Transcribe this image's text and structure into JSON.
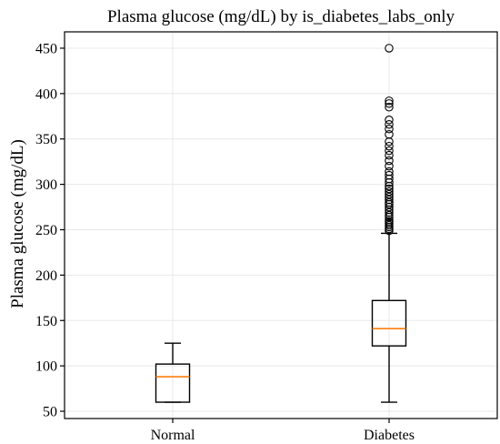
{
  "chart_data": {
    "type": "box",
    "title": "Plasma glucose (mg/dL) by is_diabetes_labs_only",
    "xlabel": "",
    "ylabel": "Plasma glucose (mg/dL)",
    "categories": [
      "Normal",
      "Diabetes"
    ],
    "ylim": [
      42,
      468
    ],
    "yticks": [
      50,
      100,
      150,
      200,
      250,
      300,
      350,
      400,
      450
    ],
    "grid": true,
    "median_color": "#ff7f0e",
    "series": [
      {
        "category": "Normal",
        "whisker_low": 60,
        "q1": 60,
        "median": 88,
        "q3": 102,
        "whisker_high": 125,
        "fliers": []
      },
      {
        "category": "Diabetes",
        "whisker_low": 60,
        "q1": 122,
        "median": 141,
        "q3": 172,
        "whisker_high": 246,
        "fliers": [
          249,
          251,
          253,
          255,
          257,
          259,
          261,
          264,
          266,
          269,
          272,
          275,
          278,
          280,
          283,
          286,
          289,
          292,
          295,
          298,
          302,
          306,
          310,
          314,
          320,
          326,
          332,
          337,
          342,
          347,
          355,
          361,
          366,
          371,
          385,
          389,
          392,
          450
        ]
      }
    ]
  }
}
